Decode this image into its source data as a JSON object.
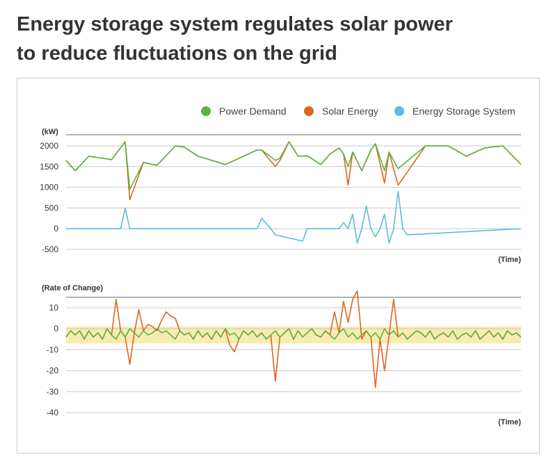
{
  "headline": {
    "line1": "Energy storage system regulates solar power",
    "line2": "to reduce fluctuations on the grid"
  },
  "colors": {
    "demand": "#5bb33c",
    "solar": "#e0641e",
    "storage": "#5bbce0",
    "band": "#f6ecb2",
    "grid": "#c8c8c8"
  },
  "chart_data": [
    {
      "type": "line",
      "ylabel": "(kW)",
      "xlabel": "(Time)",
      "ylim": [
        -500,
        2300
      ],
      "yticks": [
        2000,
        1500,
        1000,
        500,
        0,
        -500
      ],
      "ytick_labels": [
        "2000",
        "1500",
        "1000",
        "500",
        "0",
        "-500"
      ],
      "x": [
        0,
        2,
        5,
        10,
        13,
        14,
        17,
        20,
        24,
        26,
        29,
        35,
        39,
        42,
        43,
        46,
        47,
        49,
        51,
        53,
        56,
        58,
        60,
        61,
        62,
        63,
        65,
        66,
        67,
        68,
        70,
        71,
        73,
        79,
        84,
        88,
        90,
        92,
        96,
        100
      ],
      "legend": [
        "Power Demand",
        "Solar Energy",
        "Energy Storage System"
      ],
      "series": [
        {
          "name": "Power Demand",
          "values": [
            1650,
            1400,
            1750,
            1670,
            2100,
            950,
            1600,
            1530,
            2000,
            1970,
            1750,
            1550,
            1750,
            1900,
            1900,
            1650,
            1700,
            2100,
            1750,
            1760,
            1550,
            1800,
            1950,
            1800,
            1500,
            1850,
            1400,
            1650,
            1900,
            2050,
            1400,
            1850,
            1450,
            2000,
            2000,
            1750,
            1850,
            1950,
            2000,
            1550
          ]
        },
        {
          "name": "Solar Energy",
          "values": [
            1650,
            1400,
            1750,
            1670,
            2100,
            700,
            1600,
            1530,
            2000,
            1970,
            1750,
            1550,
            1750,
            1900,
            1900,
            1500,
            1650,
            2100,
            1750,
            1760,
            1550,
            1800,
            1950,
            1800,
            1050,
            1850,
            1400,
            1650,
            1900,
            2050,
            1100,
            1850,
            1050,
            2000,
            2000,
            1750,
            1850,
            1950,
            2000,
            1550
          ]
        },
        {
          "name": "Energy Storage System",
          "x": [
            0,
            12,
            13,
            14,
            42,
            43,
            45,
            46,
            52,
            53,
            54,
            60,
            61,
            62,
            63,
            64,
            65,
            66,
            67,
            68,
            69,
            70,
            71,
            72,
            73,
            74,
            75,
            100
          ],
          "values": [
            0,
            0,
            500,
            0,
            0,
            250,
            0,
            -150,
            -300,
            0,
            0,
            0,
            150,
            0,
            350,
            -350,
            0,
            550,
            0,
            -200,
            0,
            350,
            -350,
            0,
            900,
            0,
            -150,
            0
          ]
        }
      ]
    },
    {
      "type": "line",
      "ylabel": "(Rate of Change)",
      "xlabel": "(Time)",
      "ylim": [
        -40,
        15
      ],
      "yticks": [
        10,
        0,
        -10,
        -20,
        -30,
        -40
      ],
      "ytick_labels": [
        "10",
        "0",
        "-10",
        "-20",
        "-30",
        "-40"
      ],
      "band": [
        -7,
        1
      ],
      "series": [
        {
          "name": "Power Demand",
          "x": [
            0,
            1,
            2,
            3,
            4,
            5,
            6,
            7,
            8,
            9,
            10,
            11,
            12,
            13,
            14,
            15,
            16,
            17,
            18,
            19,
            20,
            21,
            22,
            23,
            24,
            25,
            26,
            27,
            28,
            29,
            30,
            31,
            32,
            33,
            34,
            35,
            36,
            37,
            38,
            39,
            40,
            41,
            42,
            43,
            44,
            45,
            46,
            47,
            48,
            49,
            50,
            51,
            52,
            53,
            54,
            55,
            56,
            57,
            58,
            59,
            60,
            61,
            62,
            63,
            64,
            65,
            66,
            67,
            68,
            69,
            70,
            71,
            72,
            73,
            74,
            75,
            76,
            77,
            78,
            79,
            80,
            81,
            82,
            83,
            84,
            85,
            86,
            87,
            88,
            89,
            90,
            91,
            92,
            93,
            94,
            95,
            96,
            97,
            98,
            99,
            100
          ],
          "values": [
            -4,
            -1,
            -3,
            -1,
            -5,
            -1,
            -4,
            -2,
            -5,
            0,
            -3,
            -5,
            -1,
            -4,
            0,
            -2,
            -4,
            -1,
            -3,
            -2,
            0,
            -2,
            -1,
            -3,
            -5,
            -1,
            -3,
            -2,
            -5,
            -1,
            -4,
            -2,
            -5,
            -1,
            -4,
            0,
            -3,
            -2,
            -5,
            -1,
            -3,
            -1,
            -4,
            -2,
            -5,
            -3,
            -1,
            -4,
            -2,
            0,
            -5,
            -1,
            -4,
            -2,
            0,
            -3,
            -4,
            -1,
            -3,
            -5,
            -2,
            0,
            -4,
            -2,
            -5,
            -3,
            -1,
            -4,
            -2,
            -5,
            0,
            -3,
            -1,
            -4,
            -2,
            -5,
            -3,
            -1,
            -2,
            -4,
            -1,
            -5,
            -3,
            -2,
            -4,
            -1,
            -5,
            -3,
            -2,
            -4,
            -1,
            -5,
            -3,
            -1,
            -4,
            -2,
            -5,
            -1,
            -3,
            -2,
            -4
          ]
        },
        {
          "name": "Solar Energy",
          "x": [
            0,
            1,
            2,
            3,
            4,
            5,
            6,
            7,
            8,
            9,
            10,
            11,
            12,
            13,
            14,
            15,
            16,
            17,
            18,
            19,
            20,
            21,
            22,
            23,
            24,
            25,
            26,
            27,
            28,
            29,
            30,
            31,
            32,
            33,
            34,
            35,
            36,
            37,
            38,
            39,
            40,
            41,
            42,
            43,
            44,
            45,
            46,
            47,
            48,
            49,
            50,
            51,
            52,
            53,
            54,
            55,
            56,
            57,
            58,
            59,
            60,
            61,
            62,
            63,
            64,
            65,
            66,
            67,
            68,
            69,
            70,
            71,
            72,
            73,
            74,
            75,
            76,
            77,
            78,
            79,
            80,
            81,
            82,
            83,
            84,
            85,
            86,
            87,
            88,
            89,
            90,
            91,
            92,
            93,
            94,
            95,
            96,
            97,
            98,
            99,
            100
          ],
          "values": [
            -4,
            -1,
            -3,
            -1,
            -5,
            -1,
            -4,
            -2,
            -5,
            0,
            -3,
            14,
            -1,
            -4,
            -17,
            -2,
            9,
            -1,
            2,
            1,
            -1,
            4,
            8,
            6,
            5,
            -1,
            -3,
            -2,
            -5,
            -1,
            -4,
            -2,
            -5,
            -1,
            -4,
            0,
            -8,
            -11,
            -5,
            -1,
            -3,
            -1,
            -4,
            -2,
            -5,
            -3,
            -25,
            -4,
            -2,
            0,
            -5,
            -1,
            -4,
            -2,
            0,
            -3,
            -4,
            -1,
            -3,
            8,
            -2,
            13,
            3,
            14,
            18,
            -5,
            -1,
            -4,
            -28,
            -5,
            -20,
            -3,
            14,
            -4,
            -2,
            -5,
            -3,
            -1,
            -2,
            -4,
            -1,
            -5,
            -3,
            -2,
            -4,
            -1,
            -5,
            -3,
            -2,
            -4,
            -1,
            -5,
            -3,
            -1,
            -4,
            -2,
            -5,
            -1,
            -3,
            -2,
            -4
          ]
        }
      ]
    }
  ]
}
